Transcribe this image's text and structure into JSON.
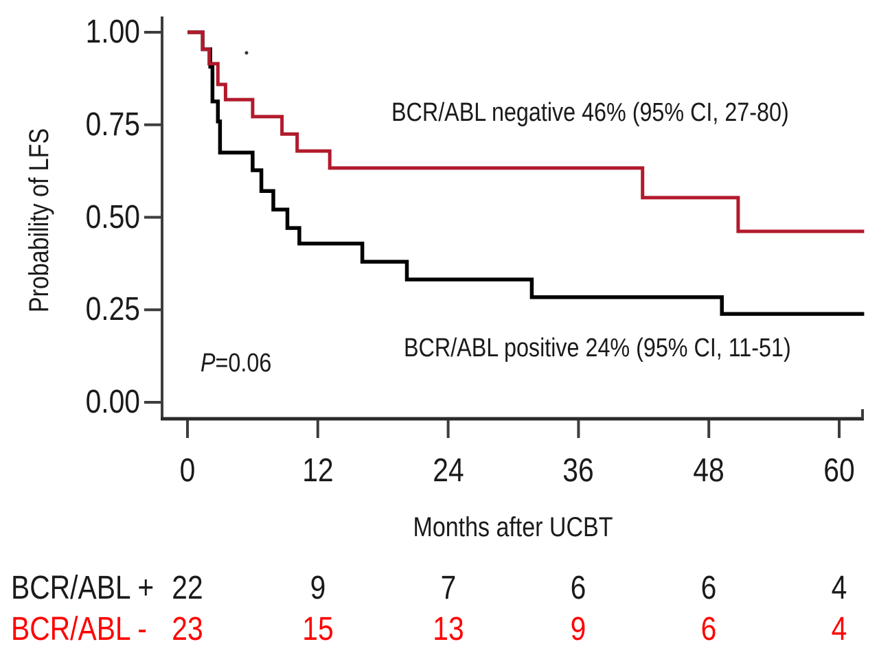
{
  "chart_data": {
    "type": "line",
    "subtype": "kaplan-meier-step",
    "title": "",
    "xlabel": "Months after UCBT",
    "ylabel": "Probability of LFS",
    "xlim": [
      0,
      62.3
    ],
    "ylim": [
      0.0,
      1.0
    ],
    "grid": false,
    "legend_position": "inline-annotations",
    "x_ticks": [
      0,
      12,
      24,
      36,
      48,
      60
    ],
    "x_tick_labels": [
      "0",
      "12",
      "24",
      "36",
      "48",
      "60"
    ],
    "y_ticks": [
      0.0,
      0.25,
      0.5,
      0.75,
      1.0
    ],
    "y_tick_labels": [
      "0.00",
      "0.25",
      "0.50",
      "0.75",
      "1.00"
    ],
    "p_value": "P=0.06",
    "series": [
      {
        "name": "BCR/ABL positive",
        "color": "#000000",
        "final_estimate": "24% (95% CI, 11-51)",
        "steps": [
          [
            0,
            1.0
          ],
          [
            1.4,
            0.954
          ],
          [
            2.1,
            0.907
          ],
          [
            2.3,
            0.813
          ],
          [
            2.8,
            0.759
          ],
          [
            3.0,
            0.675
          ],
          [
            6.0,
            0.627
          ],
          [
            6.8,
            0.571
          ],
          [
            7.9,
            0.521
          ],
          [
            9.2,
            0.471
          ],
          [
            10.3,
            0.429
          ],
          [
            16.1,
            0.38
          ],
          [
            20.2,
            0.332
          ],
          [
            31.7,
            0.284
          ],
          [
            49.2,
            0.239
          ],
          [
            62.3,
            0.239
          ]
        ]
      },
      {
        "name": "BCR/ABL negative",
        "color": "#b21a2c",
        "final_estimate": "46% (95% CI, 27-80)",
        "steps": [
          [
            0,
            1.0
          ],
          [
            1.4,
            0.954
          ],
          [
            2.0,
            0.915
          ],
          [
            2.8,
            0.859
          ],
          [
            3.5,
            0.818
          ],
          [
            6.0,
            0.772
          ],
          [
            8.7,
            0.725
          ],
          [
            10.1,
            0.679
          ],
          [
            13.1,
            0.633
          ],
          [
            41.9,
            0.553
          ],
          [
            50.7,
            0.462
          ],
          [
            62.3,
            0.462
          ]
        ]
      }
    ]
  },
  "axes": {
    "x_title": "Months after UCBT",
    "y_title": "Probability of LFS"
  },
  "annotations": {
    "negative_label": "BCR/ABL negative 46% (95% CI, 27-80)",
    "positive_label": "BCR/ABL positive 24% (95% CI, 11-51)",
    "p_italic": "P",
    "p_rest": "=0.06"
  },
  "at_risk_table": {
    "rows": [
      {
        "label": "BCR/ABL +",
        "color": "#1a1a1a",
        "counts": [
          "22",
          "9",
          "7",
          "6",
          "6",
          "4"
        ]
      },
      {
        "label": "BCR/ABL -",
        "color": "#ff0000",
        "counts": [
          "23",
          "15",
          "13",
          "9",
          "6",
          "4"
        ]
      }
    ]
  },
  "colors": {
    "negative_curve": "#b21a2c",
    "positive_curve": "#000000",
    "axis": "#3d3d3d",
    "table_red": "#ff0000",
    "text": "#1a1a1a"
  }
}
